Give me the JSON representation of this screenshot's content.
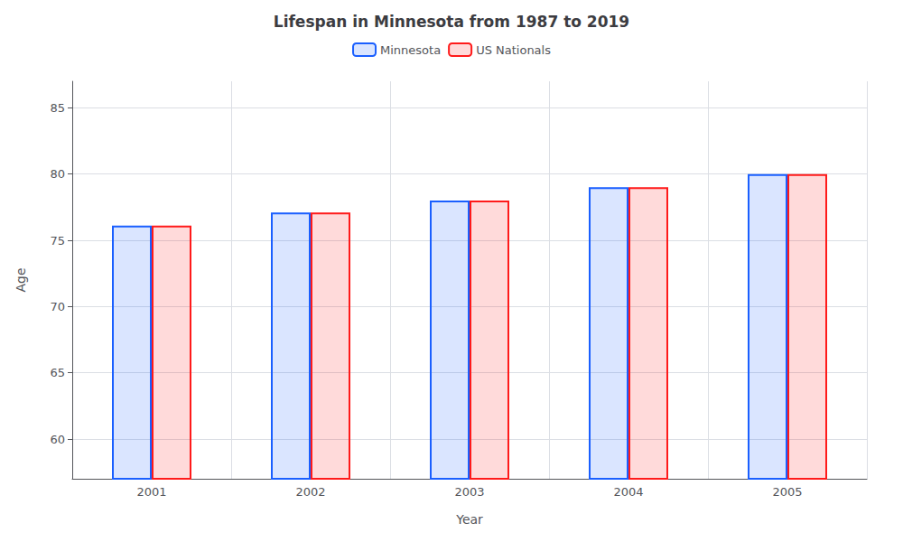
{
  "chart_data": {
    "type": "bar",
    "title": "Lifespan in Minnesota from 1987 to 2019",
    "xlabel": "Year",
    "ylabel": "Age",
    "categories": [
      "2001",
      "2002",
      "2003",
      "2004",
      "2005"
    ],
    "series": [
      {
        "name": "Minnesota",
        "color": "#1a5fff",
        "values": [
          76.1,
          77.1,
          78.0,
          79.0,
          80.0
        ]
      },
      {
        "name": "US Nationals",
        "color": "#ff1a1a",
        "values": [
          76.1,
          77.1,
          78.0,
          79.0,
          80.0
        ]
      }
    ],
    "ylim": [
      57,
      87
    ],
    "yticks": [
      60,
      65,
      70,
      75,
      80,
      85
    ],
    "grid": true,
    "legend": "top"
  }
}
